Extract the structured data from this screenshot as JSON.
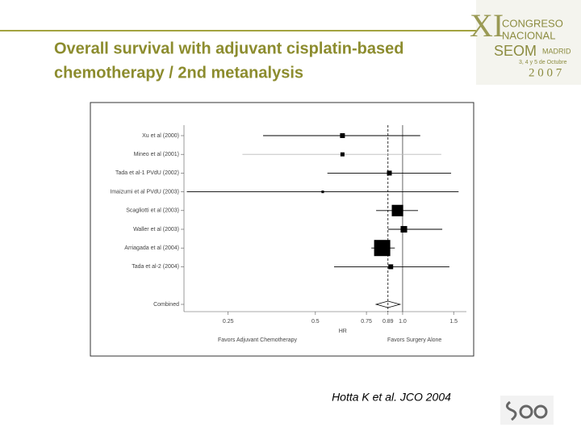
{
  "slide": {
    "title_lines": [
      "Overall survival with adjuvant cisplatin-based",
      "chemotherapy / 2nd metanalysis"
    ],
    "citation": "Hotta K et al. JCO 2004",
    "logo": {
      "numeral": "XI",
      "line1": "CONGRESO",
      "line2": "NACIONAL",
      "brand": "SEOM",
      "city": "MADRID",
      "dates": "3, 4 y 5 de Octubre",
      "year": "2 0 0 7"
    }
  },
  "chart_data": {
    "type": "forest",
    "x_label": "HR",
    "favors_left": "Favors Adjuvant Chemotherapy",
    "favors_right": "Favors Surgery Alone",
    "categories": [
      "Xu et al (2000)",
      "Mineo et al (2001)",
      "Tada et al-1 PVdU (2002)",
      "Imaizumi et al PVdU (2003)",
      "Scagliotti et al (2003)",
      "Waller et al (2003)",
      "Arriagada et al (2004)",
      "Tada et al-2 (2004)"
    ],
    "values": [
      0.62,
      0.62,
      0.9,
      0.53,
      0.96,
      1.01,
      0.85,
      0.91
    ],
    "low": [
      0.33,
      0.28,
      0.55,
      0.18,
      0.81,
      0.89,
      0.78,
      0.58
    ],
    "high": [
      1.15,
      1.36,
      1.47,
      1.56,
      1.13,
      1.37,
      0.94,
      1.45
    ],
    "weights": [
      3.6,
      2.5,
      3.6,
      1,
      20,
      6.5,
      40,
      3.6
    ],
    "ci_colors": [
      "#000000",
      "#bbbbbb",
      "#000000",
      "#000000",
      "#000000",
      "#000000",
      "#000000",
      "#000000"
    ],
    "combined": {
      "name": "Combined",
      "value": 0.89,
      "low": 0.81,
      "high": 0.98
    },
    "color": "#000000",
    "log_x": true,
    "xlim": [
      0.176,
      1.66
    ],
    "xticks": [
      0.25,
      0.5,
      0.75,
      0.89,
      {
        "value": 1,
        "label": "1.0"
      },
      1.5
    ],
    "reference_line": 1,
    "pooled_line": 0.89
  }
}
